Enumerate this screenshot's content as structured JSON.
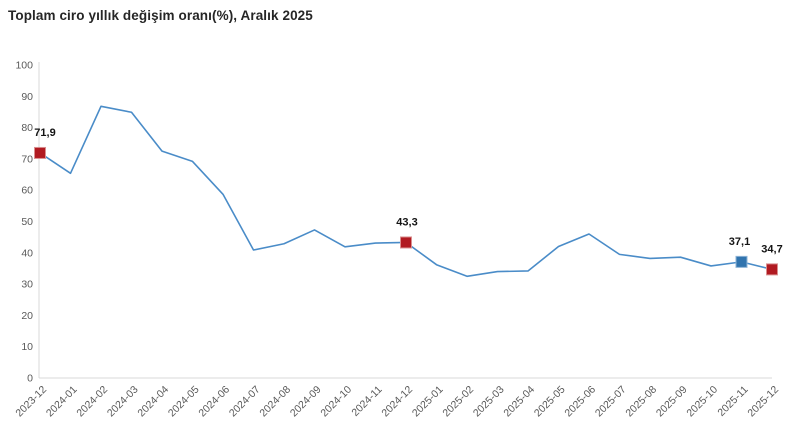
{
  "header": {
    "title": "Toplam ciro yıllık değişim oranı(%), Aralık 2025"
  },
  "chart_data": {
    "type": "line",
    "title": "Toplam ciro yıllık değişim oranı(%), Aralık 2025",
    "x": [
      "2023-12",
      "2024-01",
      "2024-02",
      "2024-03",
      "2024-04",
      "2024-05",
      "2024-06",
      "2024-07",
      "2024-08",
      "2024-09",
      "2024-10",
      "2024-11",
      "2024-12",
      "2025-01",
      "2025-02",
      "2025-03",
      "2025-04",
      "2025-05",
      "2025-06",
      "2025-07",
      "2025-08",
      "2025-09",
      "2025-10",
      "2025-11",
      "2025-12"
    ],
    "values": [
      71.9,
      65.4,
      86.8,
      84.9,
      72.5,
      69.2,
      58.7,
      40.9,
      42.9,
      47.3,
      41.9,
      43.1,
      43.3,
      36.2,
      32.5,
      34.0,
      34.2,
      42.0,
      46.0,
      39.5,
      38.2,
      38.6,
      35.8,
      37.1,
      34.7
    ],
    "ylim": [
      0,
      100
    ],
    "y_ticks": [
      0,
      10,
      20,
      30,
      40,
      50,
      60,
      70,
      80,
      90,
      100
    ],
    "grid": false,
    "legend": false,
    "annotations": [
      {
        "x": "2023-12",
        "label": "71,9",
        "value": 71.9,
        "marker": "square",
        "color": "#b11a21",
        "border": "#d98f8f",
        "dx": 5
      },
      {
        "x": "2024-12",
        "label": "43,3",
        "value": 43.3,
        "marker": "square",
        "color": "#b11a21",
        "border": "#d98f8f",
        "dx": 1
      },
      {
        "x": "2025-11",
        "label": "37,1",
        "value": 37.1,
        "marker": "square",
        "color": "#3174ae",
        "border": "#8db3d6",
        "dx": -2
      },
      {
        "x": "2025-12",
        "label": "34,7",
        "value": 34.7,
        "marker": "square",
        "color": "#b11a21",
        "border": "#d98f8f",
        "dx": 0
      }
    ],
    "colors": {
      "line": "#4a8cc8",
      "marker_red": "#b11a21",
      "marker_blue": "#3174ae",
      "axis": "#d9d9d9",
      "tick_text": "#595959",
      "title_text": "#262626",
      "label_text": "#141414",
      "background": "#ffffff"
    }
  }
}
